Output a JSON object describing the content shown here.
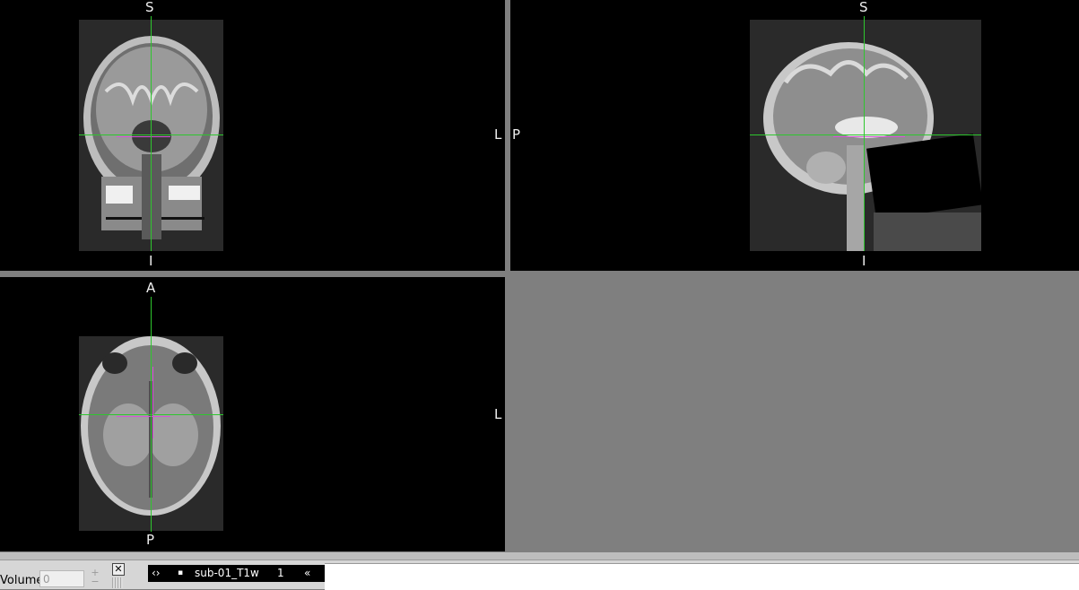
{
  "views": {
    "coronal": {
      "top": "S",
      "bottom": "I",
      "right": "L"
    },
    "sagittal": {
      "left": "P",
      "top": "S",
      "bottom": "I"
    },
    "axial": {
      "top": "A",
      "bottom": "P",
      "right": "L"
    }
  },
  "toolbar": {
    "volume_label": "Volume",
    "volume_value": "0",
    "stepper_plus": "+",
    "stepper_minus": "−",
    "close_label": "✕"
  },
  "overlay_list": {
    "nav_icon": "‹›",
    "visibility_icon": "▪",
    "layer_name": "sub-01_T1w",
    "layer_opacity": "1",
    "collapse_icon": "«"
  },
  "colors": {
    "crosshair": "#2ec62e",
    "crosshair_secondary": "#d455d4",
    "background": "#7f7f7f",
    "view_bg": "#000000"
  }
}
